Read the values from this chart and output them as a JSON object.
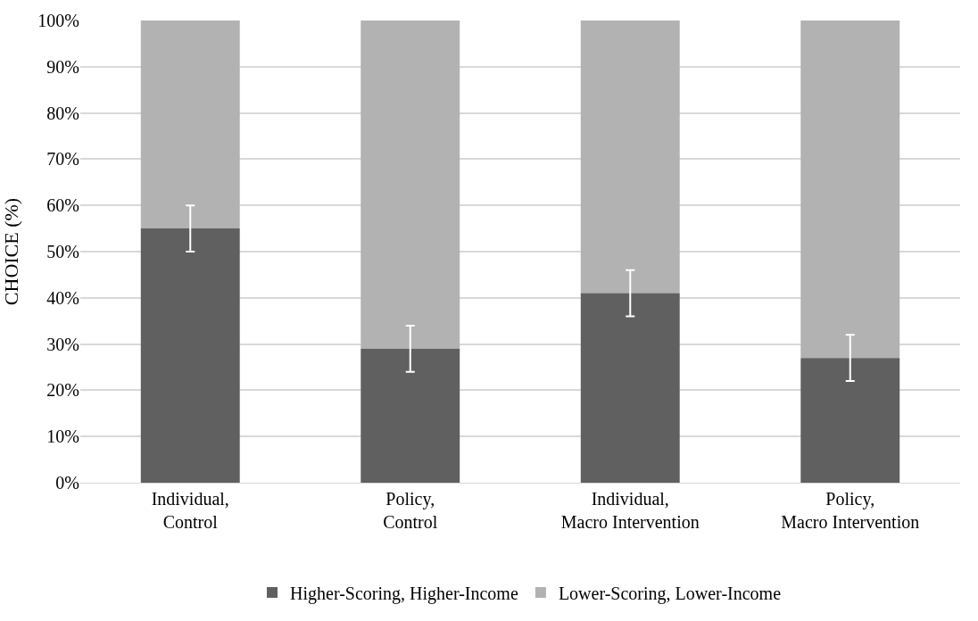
{
  "chart_data": {
    "type": "bar",
    "stacked": true,
    "ylabel": "CHOICE (%)",
    "categories": [
      "Individual,\nControl",
      "Policy,\nControl",
      "Individual,\nMacro Intervention",
      "Policy,\nMacro Intervention"
    ],
    "series": [
      {
        "name": "Higher-Scoring, Higher-Income",
        "color": "#606060",
        "values": [
          55,
          29,
          41,
          27
        ],
        "errors": [
          5,
          5,
          5,
          5
        ]
      },
      {
        "name": "Lower-Scoring, Lower-Income",
        "color": "#b2b2b2",
        "values": [
          45,
          71,
          59,
          73
        ]
      }
    ],
    "ylim": [
      0,
      100
    ],
    "yticks": [
      {
        "value": 0,
        "label": "0%"
      },
      {
        "value": 10,
        "label": "10%"
      },
      {
        "value": 20,
        "label": "20%"
      },
      {
        "value": 30,
        "label": "30%"
      },
      {
        "value": 40,
        "label": "40%"
      },
      {
        "value": 50,
        "label": "50%"
      },
      {
        "value": 60,
        "label": "60%"
      },
      {
        "value": 70,
        "label": "70%"
      },
      {
        "value": 80,
        "label": "80%"
      },
      {
        "value": 90,
        "label": "90%"
      },
      {
        "value": 100,
        "label": "100%"
      }
    ],
    "grid": "y",
    "legend": "bottom"
  }
}
